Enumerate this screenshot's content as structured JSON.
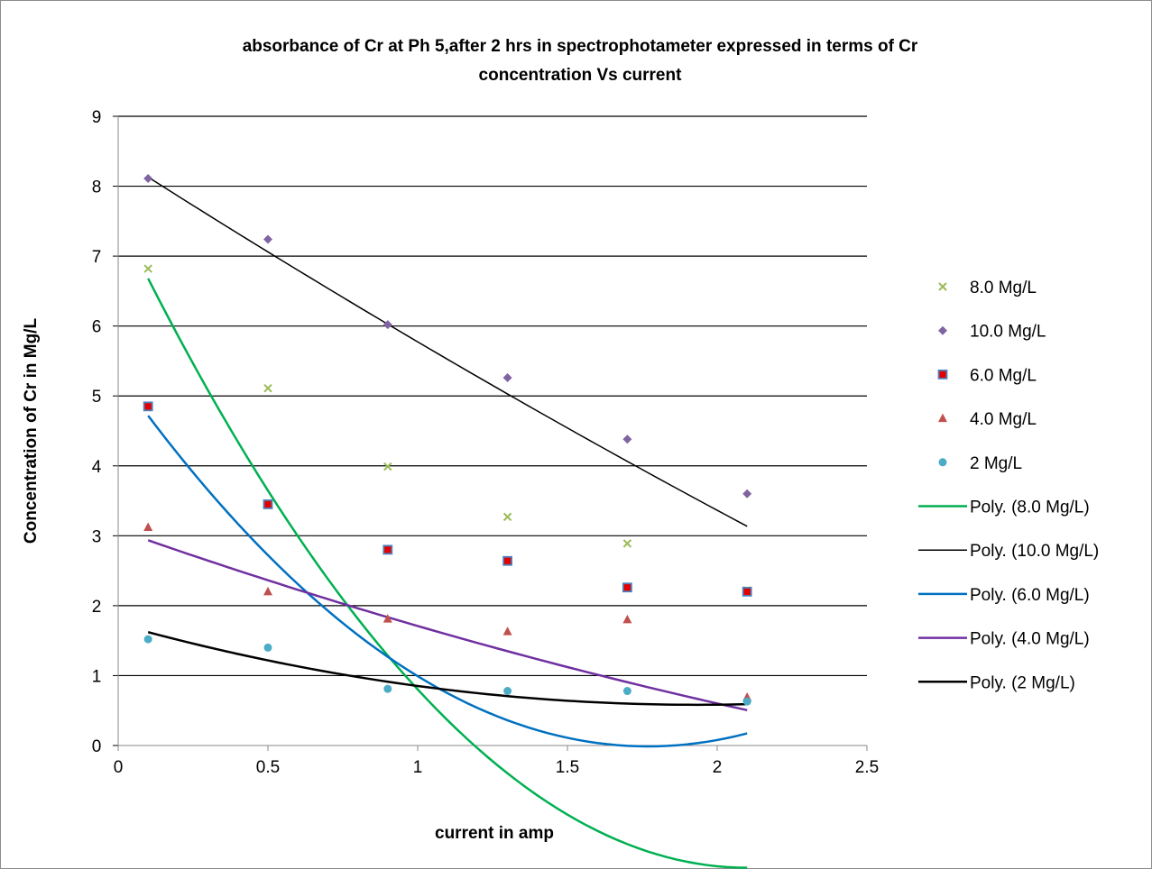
{
  "chart_data": {
    "type": "scatter",
    "title_lines": [
      "absorbance of Cr at Ph 5,after 2 hrs in spectrophotameter expressed in terms of Cr",
      "concentration Vs current"
    ],
    "xlabel": "current in amp",
    "ylabel": "Concentration of Cr in Mg/L",
    "xlim": [
      0,
      2.5
    ],
    "ylim": [
      0,
      9
    ],
    "x_ticks": [
      "0",
      "0.5",
      "1",
      "1.5",
      "2",
      "2.5"
    ],
    "y_ticks": [
      "0",
      "1",
      "2",
      "3",
      "4",
      "5",
      "6",
      "7",
      "8",
      "9"
    ],
    "grid": "horizontal",
    "legend_position": "right",
    "x": [
      0.1,
      0.5,
      0.9,
      1.3,
      1.7,
      2.1
    ],
    "series": [
      {
        "name": "8.0 Mg/L",
        "marker": "x",
        "color": "#9BBB59",
        "values": [
          6.82,
          5.11,
          3.99,
          3.27,
          2.89,
          2.22
        ]
      },
      {
        "name": "10.0 Mg/L",
        "marker": "diamond",
        "color": "#8064A2",
        "values": [
          8.11,
          7.24,
          6.02,
          5.26,
          4.38,
          3.6
        ]
      },
      {
        "name": "6.0 Mg/L",
        "marker": "square",
        "color": "#4F81BD",
        "fill": "#E30000",
        "values": [
          4.85,
          3.45,
          2.8,
          2.64,
          2.26,
          2.2
        ]
      },
      {
        "name": "4.0 Mg/L",
        "marker": "triangle",
        "color": "#C0504D",
        "values": [
          3.12,
          2.2,
          1.81,
          1.63,
          1.8,
          0.69
        ]
      },
      {
        "name": "2 Mg/L",
        "marker": "circle",
        "color": "#4BACC6",
        "values": [
          1.52,
          1.4,
          0.81,
          0.78,
          0.78,
          0.63
        ]
      }
    ],
    "trendlines": [
      {
        "name": "Poly. (8.0 Mg/L)",
        "color": "#00B050",
        "order": 2,
        "coeffs": [
          7.5438,
          -8.8469,
          2.1057
        ]
      },
      {
        "name": "Poly. (10.0 Mg/L)",
        "color": "#000000",
        "order": 2,
        "coeffs": [
          8.4018,
          -2.7375,
          0.1094
        ]
      },
      {
        "name": "Poly. (6.0 Mg/L)",
        "color": "#0070C0",
        "order": 2,
        "coeffs": [
          5.3014,
          -6.0084,
          1.6984
        ]
      },
      {
        "name": "Poly. (4.0 Mg/L)",
        "color": "#7030A0",
        "order": 2,
        "coeffs": [
          3.0848,
          -1.5094,
          0.1339
        ]
      },
      {
        "name": "Poly. (2 Mg/L)",
        "color": "#000000",
        "order": 2,
        "coeffs": [
          1.7378,
          -1.1953,
          0.3092
        ]
      }
    ]
  }
}
